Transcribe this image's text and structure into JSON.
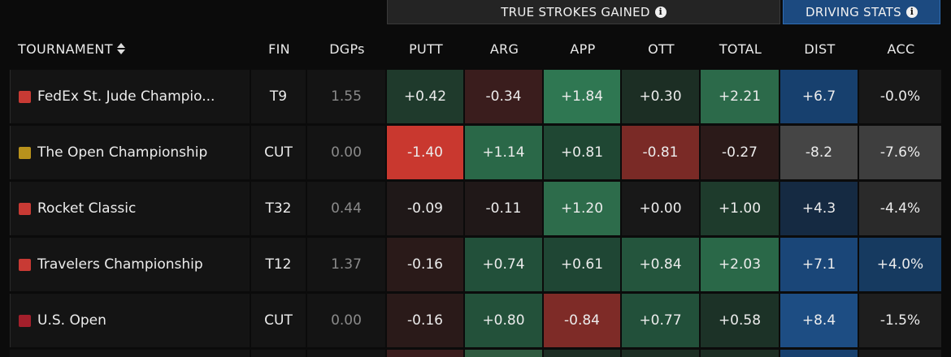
{
  "group_headers": {
    "strokes_gained": "TRUE STROKES GAINED",
    "driving": "DRIVING STATS"
  },
  "columns": {
    "tournament": "TOURNAMENT",
    "fin": "FIN",
    "dgps": "DGPs",
    "putt": "PUTT",
    "arg": "ARG",
    "app": "APP",
    "ott": "OTT",
    "total": "TOTAL",
    "dist": "DIST",
    "acc": "ACC"
  },
  "rows": [
    {
      "name": "FedEx St. Jude Champio...",
      "tour_color": "#c83a34",
      "fin": "T9",
      "dgps": "1.55",
      "putt": {
        "v": "+0.42",
        "bg": "#1f3a2c"
      },
      "arg": {
        "v": "-0.34",
        "bg": "#3a1d1d"
      },
      "app": {
        "v": "+1.84",
        "bg": "#2f7752"
      },
      "ott": {
        "v": "+0.30",
        "bg": "#1c2e24"
      },
      "total": {
        "v": "+2.21",
        "bg": "#2c6a4a"
      },
      "dist": {
        "v": "+6.7",
        "bg": "#17406e"
      },
      "acc": {
        "v": "-0.0%",
        "bg": "#181818"
      }
    },
    {
      "name": "The Open Championship",
      "tour_color": "#b8921c",
      "fin": "CUT",
      "dgps": "0.00",
      "putt": {
        "v": "-1.40",
        "bg": "#c9382f"
      },
      "arg": {
        "v": "+1.14",
        "bg": "#2a6848"
      },
      "app": {
        "v": "+0.81",
        "bg": "#1f4733"
      },
      "ott": {
        "v": "-0.81",
        "bg": "#7a2a26"
      },
      "total": {
        "v": "-0.27",
        "bg": "#2b1a19"
      },
      "dist": {
        "v": "-8.2",
        "bg": "#454545"
      },
      "acc": {
        "v": "-7.6%",
        "bg": "#3e3e3e"
      }
    },
    {
      "name": "Rocket Classic",
      "tour_color": "#c83a34",
      "fin": "T32",
      "dgps": "0.44",
      "putt": {
        "v": "-0.09",
        "bg": "#1f1818"
      },
      "arg": {
        "v": "-0.11",
        "bg": "#201818"
      },
      "app": {
        "v": "+1.20",
        "bg": "#2d6c4b"
      },
      "ott": {
        "v": "+0.00",
        "bg": "#181818"
      },
      "total": {
        "v": "+1.00",
        "bg": "#1e3b2c"
      },
      "dist": {
        "v": "+4.3",
        "bg": "#152a42"
      },
      "acc": {
        "v": "-4.4%",
        "bg": "#2a2a2a"
      }
    },
    {
      "name": "Travelers Championship",
      "tour_color": "#c83a34",
      "fin": "T12",
      "dgps": "1.37",
      "putt": {
        "v": "-0.16",
        "bg": "#2a1a19"
      },
      "arg": {
        "v": "+0.74",
        "bg": "#22503a"
      },
      "app": {
        "v": "+0.61",
        "bg": "#1f4634"
      },
      "ott": {
        "v": "+0.84",
        "bg": "#24553d"
      },
      "total": {
        "v": "+2.03",
        "bg": "#2a6848"
      },
      "dist": {
        "v": "+7.1",
        "bg": "#1a4678"
      },
      "acc": {
        "v": "+4.0%",
        "bg": "#163a60"
      }
    },
    {
      "name": "U.S. Open",
      "tour_color": "#a31f2b",
      "fin": "CUT",
      "dgps": "0.00",
      "putt": {
        "v": "-0.16",
        "bg": "#2a1a19"
      },
      "arg": {
        "v": "+0.80",
        "bg": "#23513a"
      },
      "app": {
        "v": "-0.84",
        "bg": "#7e2b27"
      },
      "ott": {
        "v": "+0.77",
        "bg": "#22503a"
      },
      "total": {
        "v": "+0.58",
        "bg": "#1c3227"
      },
      "dist": {
        "v": "+8.4",
        "bg": "#1d4d83"
      },
      "acc": {
        "v": "-1.5%",
        "bg": "#1e1e1e"
      }
    }
  ],
  "peek_colors": [
    "#141414",
    "#141414",
    "#141414",
    "#3a1d1d",
    "#2f5a3f",
    "#1c2e24",
    "#1c2e24",
    "#1c2e24",
    "#17406e",
    "#181818"
  ]
}
